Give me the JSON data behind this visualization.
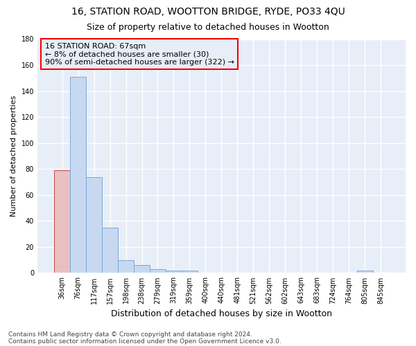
{
  "title1": "16, STATION ROAD, WOOTTON BRIDGE, RYDE, PO33 4QU",
  "title2": "Size of property relative to detached houses in Wootton",
  "xlabel": "Distribution of detached houses by size in Wootton",
  "ylabel": "Number of detached properties",
  "categories": [
    "36sqm",
    "76sqm",
    "117sqm",
    "157sqm",
    "198sqm",
    "238sqm",
    "279sqm",
    "319sqm",
    "359sqm",
    "400sqm",
    "440sqm",
    "481sqm",
    "521sqm",
    "562sqm",
    "602sqm",
    "643sqm",
    "683sqm",
    "724sqm",
    "764sqm",
    "805sqm",
    "845sqm"
  ],
  "values": [
    79,
    151,
    74,
    35,
    10,
    6,
    3,
    2,
    2,
    0,
    0,
    0,
    0,
    0,
    0,
    0,
    0,
    0,
    0,
    2,
    0
  ],
  "bar_color": "#c6d9f0",
  "bar_edge_color": "#7da8d8",
  "highlight_color": "#e8c0c0",
  "highlight_edge_color": "#cc4444",
  "highlight_index": 0,
  "ylim": [
    0,
    180
  ],
  "yticks": [
    0,
    20,
    40,
    60,
    80,
    100,
    120,
    140,
    160,
    180
  ],
  "annotation_text_line1": "16 STATION ROAD: 67sqm",
  "annotation_text_line2": "← 8% of detached houses are smaller (30)",
  "annotation_text_line3": "90% of semi-detached houses are larger (322) →",
  "footer1": "Contains HM Land Registry data © Crown copyright and database right 2024.",
  "footer2": "Contains public sector information licensed under the Open Government Licence v3.0.",
  "bg_color": "#ffffff",
  "plot_bg_color": "#e8eef8",
  "grid_color": "#ffffff",
  "title1_fontsize": 10,
  "title2_fontsize": 9,
  "xlabel_fontsize": 9,
  "ylabel_fontsize": 8,
  "tick_fontsize": 7,
  "footer_fontsize": 6.5,
  "ann_fontsize": 8
}
